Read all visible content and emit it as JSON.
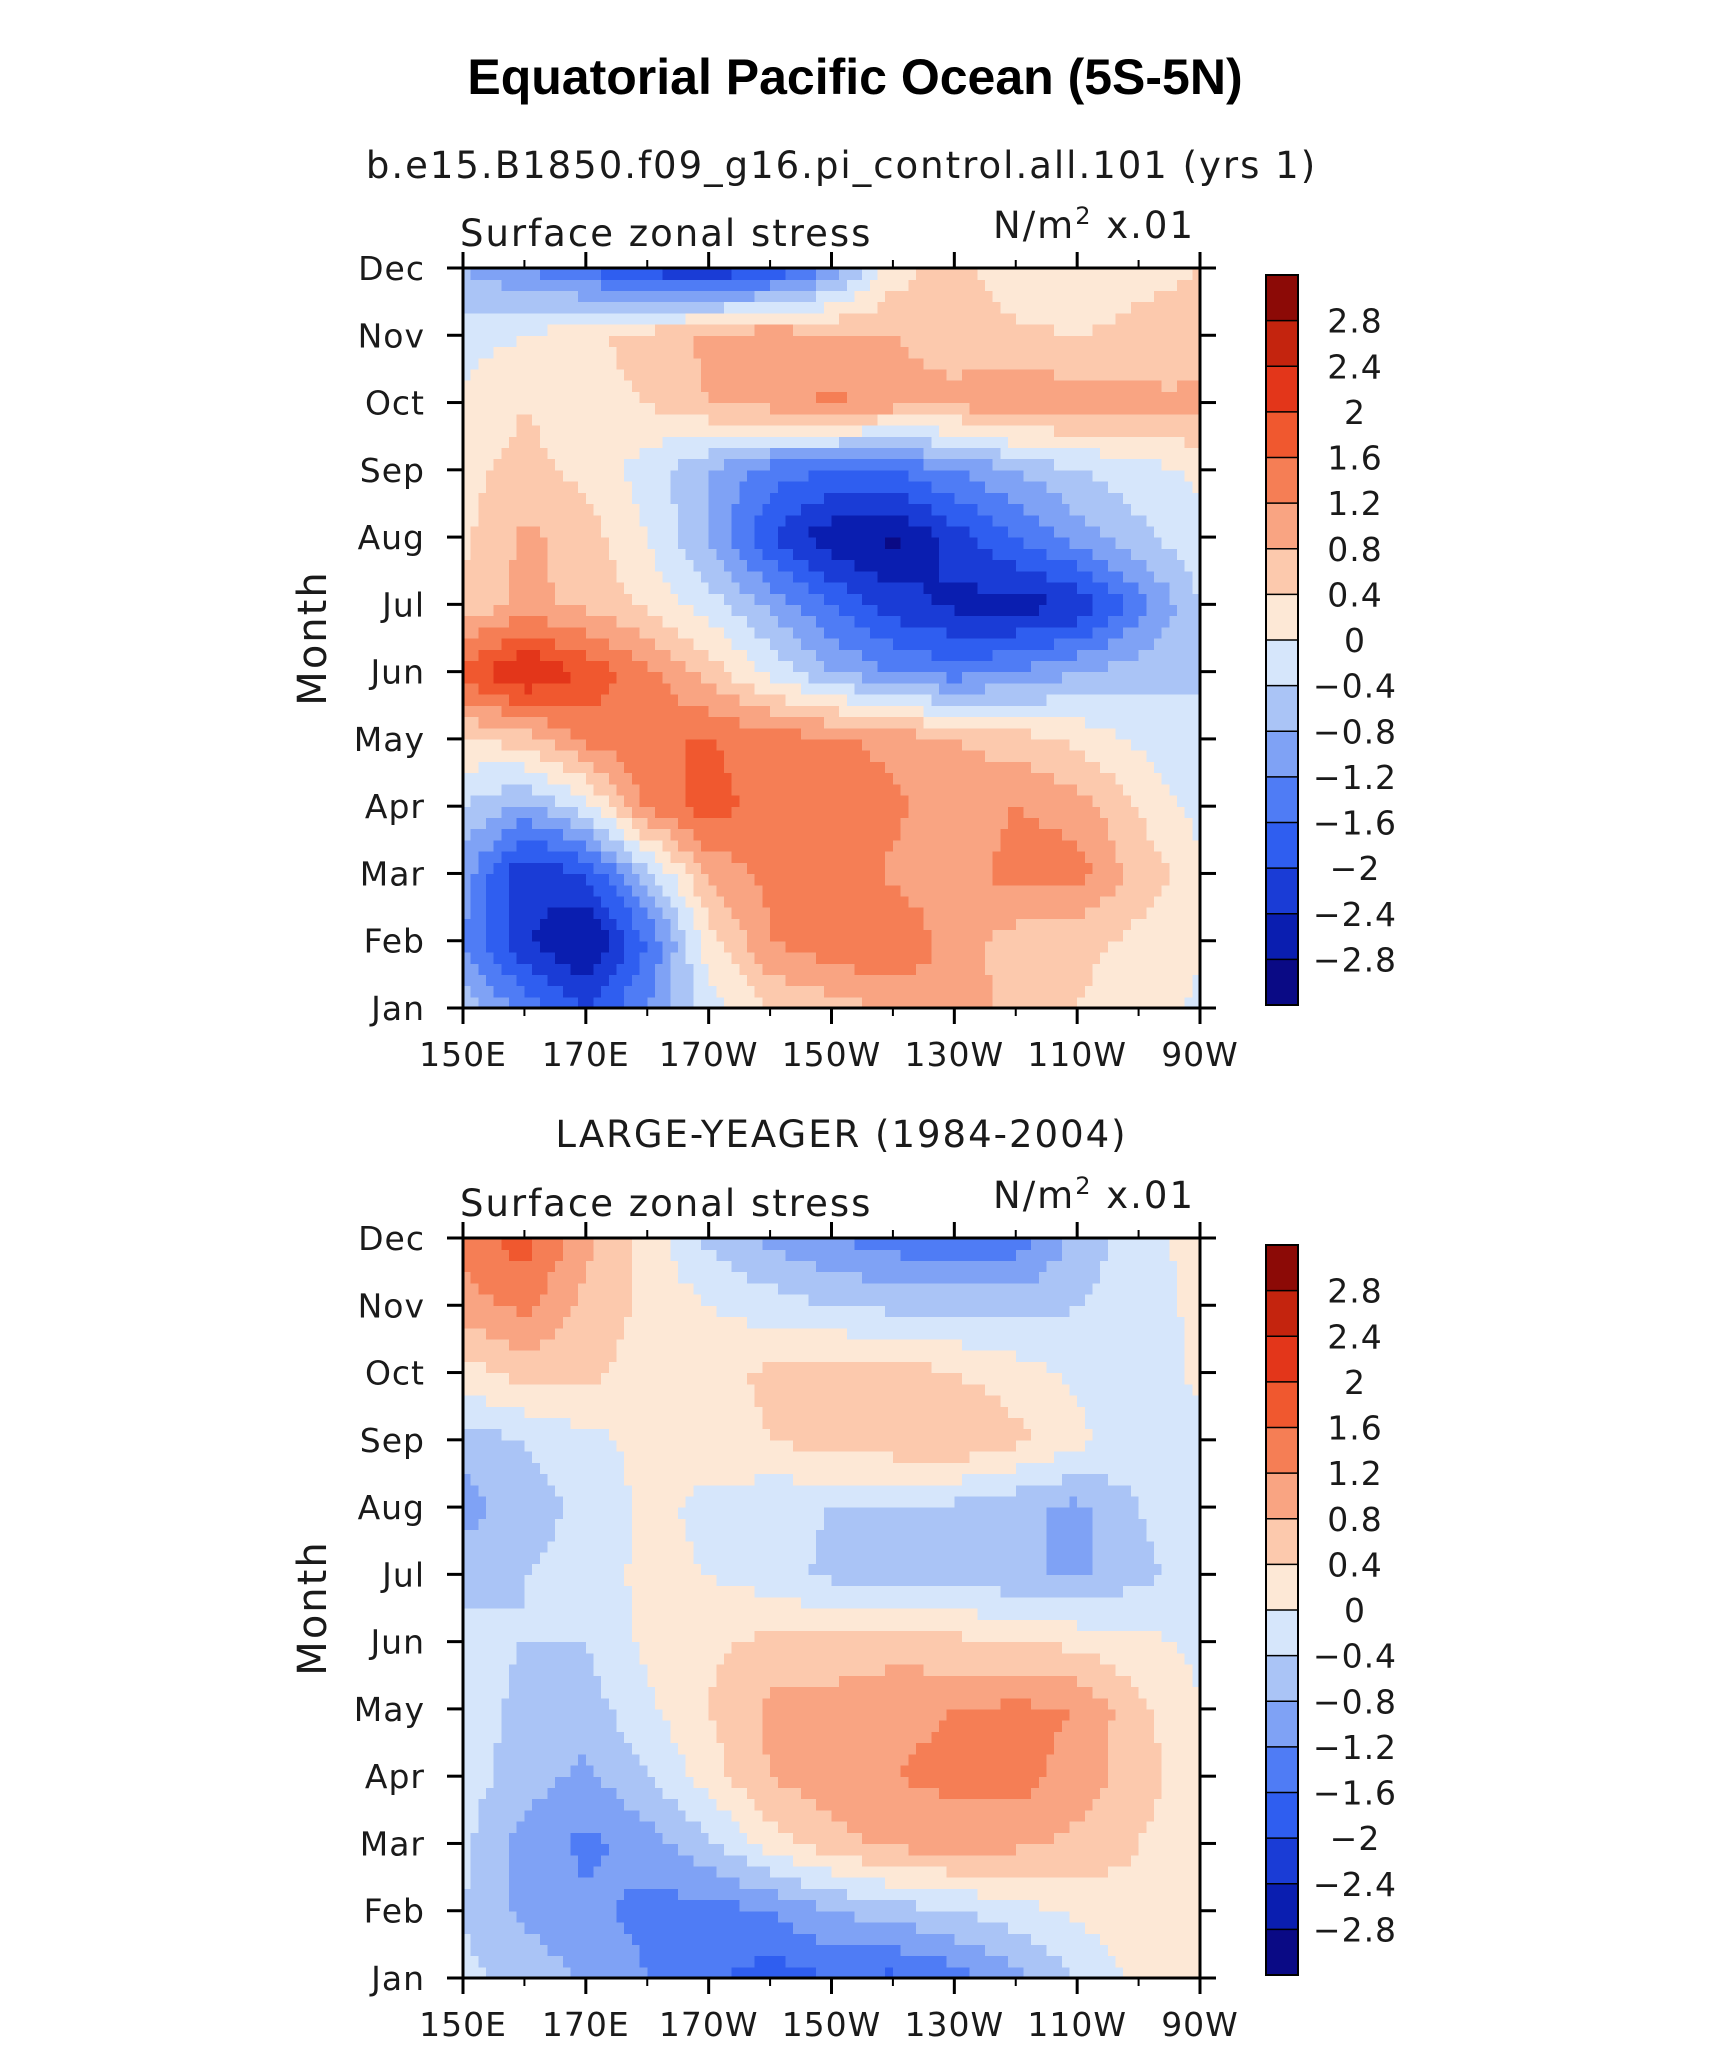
{
  "figure_title": "Equatorial Pacific Ocean (5S-5N)",
  "chart_data": [
    {
      "type": "heatmap",
      "title": "b.e15.B1850.f09_g16.pi_control.all.101 (yrs 1)",
      "left_label": "Surface zonal stress",
      "units_main": "N/m",
      "units_sup": "2",
      "units_scale": "x.01",
      "ylabel": "Month",
      "xlabel": "",
      "x_tick_labels": [
        "150E",
        "170E",
        "170W",
        "150W",
        "130W",
        "110W",
        "90W"
      ],
      "y_tick_labels": [
        "Jan",
        "Feb",
        "Mar",
        "Apr",
        "May",
        "Jun",
        "Jul",
        "Aug",
        "Sep",
        "Oct",
        "Nov",
        "Dec"
      ],
      "xlim": [
        150,
        270
      ],
      "ylim": [
        "Jan",
        "Dec"
      ],
      "grid_lon": [
        150,
        160,
        170,
        180,
        190,
        200,
        210,
        220,
        230,
        240,
        250,
        260,
        270
      ],
      "values": [
        [
          -0.5,
          -1.4,
          -2.0,
          -1.2,
          -0.2,
          0.4,
          0.6,
          0.9,
          1.1,
          0.6,
          0.4,
          0.2,
          -0.1
        ],
        [
          -1.2,
          -2.3,
          -2.9,
          -1.6,
          0.2,
          1.2,
          1.5,
          1.6,
          1.0,
          0.6,
          0.5,
          0.3,
          0.1
        ],
        [
          -1.0,
          -2.4,
          -2.0,
          -0.6,
          0.9,
          1.3,
          1.6,
          1.1,
          0.9,
          1.4,
          1.4,
          0.6,
          0.2
        ],
        [
          -0.4,
          -0.9,
          -0.2,
          1.3,
          1.8,
          1.4,
          1.3,
          1.3,
          1.0,
          1.2,
          1.0,
          0.4,
          -0.2
        ],
        [
          0.3,
          0.6,
          1.3,
          1.6,
          1.6,
          1.4,
          1.3,
          1.1,
          0.8,
          0.6,
          0.3,
          -0.1,
          -0.4
        ],
        [
          1.8,
          2.5,
          1.9,
          1.3,
          0.6,
          -0.1,
          -0.8,
          -1.2,
          -1.4,
          -1.2,
          -0.8,
          -0.6,
          -0.4
        ],
        [
          0.5,
          0.9,
          0.7,
          0.3,
          -0.2,
          -0.9,
          -1.6,
          -2.2,
          -2.5,
          -2.6,
          -2.4,
          -1.4,
          -0.4
        ],
        [
          0.3,
          0.9,
          0.6,
          0.0,
          -0.8,
          -2.0,
          -2.7,
          -2.9,
          -2.2,
          -1.6,
          -1.0,
          -0.5,
          -0.1
        ],
        [
          0.3,
          0.5,
          0.3,
          -0.2,
          -0.8,
          -1.4,
          -1.6,
          -1.6,
          -1.2,
          -0.8,
          -0.4,
          -0.2,
          0.1
        ],
        [
          0.1,
          0.4,
          0.2,
          0.4,
          0.8,
          1.0,
          1.3,
          1.0,
          0.9,
          1.2,
          1.0,
          0.9,
          0.9
        ],
        [
          -0.2,
          0.0,
          0.3,
          0.6,
          0.9,
          1.1,
          0.9,
          0.8,
          0.6,
          0.5,
          0.4,
          0.5,
          0.5
        ],
        [
          -0.8,
          -1.2,
          -1.6,
          -2.2,
          -2.4,
          -2.0,
          -1.2,
          0.2,
          0.6,
          0.1,
          0.0,
          0.3,
          0.4
        ]
      ]
    },
    {
      "type": "heatmap",
      "title": "LARGE-YEAGER (1984-2004)",
      "left_label": "Surface zonal stress",
      "units_main": "N/m",
      "units_sup": "2",
      "units_scale": "x.01",
      "ylabel": "Month",
      "xlabel": "",
      "x_tick_labels": [
        "150E",
        "170E",
        "170W",
        "150W",
        "130W",
        "110W",
        "90W"
      ],
      "y_tick_labels": [
        "Jan",
        "Feb",
        "Mar",
        "Apr",
        "May",
        "Jun",
        "Jul",
        "Aug",
        "Sep",
        "Oct",
        "Nov",
        "Dec"
      ],
      "xlim": [
        150,
        270
      ],
      "ylim": [
        "Jan",
        "Dec"
      ],
      "grid_lon": [
        150,
        160,
        170,
        180,
        190,
        200,
        210,
        220,
        230,
        240,
        250,
        260,
        270
      ],
      "values": [
        [
          -0.3,
          -0.5,
          -0.9,
          -1.2,
          -1.5,
          -1.8,
          -1.6,
          -1.7,
          -1.4,
          -0.9,
          -0.4,
          0.1,
          0.2
        ],
        [
          -0.4,
          -0.9,
          -1.1,
          -1.3,
          -1.4,
          -1.2,
          -0.8,
          -0.6,
          -0.4,
          -0.2,
          0.1,
          0.3,
          0.2
        ],
        [
          -0.3,
          -1.0,
          -1.3,
          -1.0,
          -0.5,
          0.2,
          0.6,
          0.9,
          1.0,
          0.9,
          0.7,
          0.4,
          0.1
        ],
        [
          -0.2,
          -0.6,
          -0.9,
          -0.4,
          0.2,
          0.8,
          1.1,
          1.2,
          1.3,
          1.4,
          1.0,
          0.6,
          0.1
        ],
        [
          -0.2,
          -0.5,
          -0.6,
          -0.1,
          0.4,
          0.9,
          1.0,
          1.1,
          1.2,
          1.3,
          1.2,
          0.5,
          0.0
        ],
        [
          -0.3,
          -0.4,
          -0.4,
          0.1,
          0.3,
          0.5,
          0.5,
          0.6,
          0.5,
          0.4,
          0.3,
          0.1,
          -0.1
        ],
        [
          -0.5,
          -0.4,
          -0.2,
          0.1,
          0.0,
          -0.2,
          -0.5,
          -0.7,
          -0.6,
          -0.7,
          -0.9,
          -0.5,
          -0.2
        ],
        [
          -1.0,
          -0.6,
          -0.3,
          0.1,
          -0.1,
          -0.3,
          -0.4,
          -0.5,
          -0.5,
          -0.7,
          -0.9,
          -0.4,
          -0.2
        ],
        [
          -0.6,
          -0.4,
          -0.1,
          0.1,
          0.2,
          0.4,
          0.6,
          0.7,
          0.8,
          0.5,
          0.1,
          -0.2,
          -0.1
        ],
        [
          0.2,
          0.6,
          0.5,
          0.2,
          0.2,
          0.5,
          0.6,
          0.6,
          0.4,
          0.2,
          -0.1,
          -0.3,
          0.1
        ],
        [
          1.0,
          1.3,
          0.7,
          0.3,
          0.0,
          -0.2,
          -0.4,
          -0.5,
          -0.5,
          -0.6,
          -0.4,
          -0.2,
          0.1
        ],
        [
          1.4,
          1.8,
          0.9,
          0.2,
          -0.5,
          -0.9,
          -1.2,
          -1.4,
          -1.6,
          -1.4,
          -0.7,
          -0.1,
          0.1
        ]
      ]
    }
  ],
  "colorbar": {
    "levels": [
      -2.8,
      -2.4,
      -2,
      -1.6,
      -1.2,
      -0.8,
      -0.4,
      0,
      0.4,
      0.8,
      1.2,
      1.6,
      2,
      2.4,
      2.8
    ],
    "labels_top_to_bottom": [
      "2.8",
      "2.4",
      "2",
      "1.6",
      "1.2",
      "0.8",
      "0.4",
      "0",
      "−0.4",
      "−0.8",
      "−1.2",
      "−1.6",
      "−2",
      "−2.4",
      "−2.8"
    ],
    "colors_low_to_high": [
      "#0a0a85",
      "#0a1eb0",
      "#1a3cd6",
      "#2f5ef0",
      "#4f7cf5",
      "#7fa2f5",
      "#aac4f6",
      "#d6e6fb",
      "#fde8d6",
      "#fcc9ad",
      "#f9a482",
      "#f57e55",
      "#f0582f",
      "#e3361a",
      "#c4240e",
      "#8c0a06"
    ]
  }
}
